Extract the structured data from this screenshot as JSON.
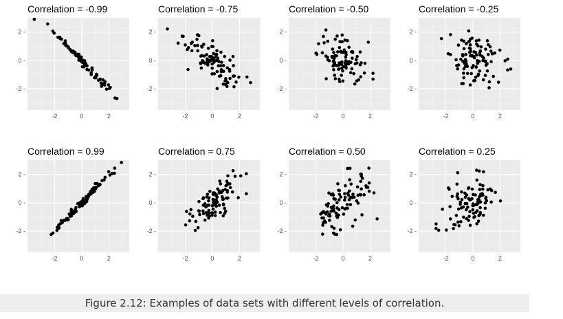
{
  "caption": "Figure 2.12: Examples of data sets with different levels of correlation.",
  "colors": {
    "panel_background": "#ebebeb",
    "grid_major": "#ffffff",
    "grid_minor": "#f4f4f4",
    "points": "#000000",
    "ticks": "#4d4d4d",
    "caption_background": "#eeeeee"
  },
  "chart_data": [
    {
      "type": "scatter",
      "title": "Correlation = -0.99",
      "correlation": -0.99,
      "xlim": [
        -4,
        3.5
      ],
      "ylim": [
        -3.5,
        3
      ],
      "x_ticks": [
        -2,
        0,
        2
      ],
      "y_ticks": [
        2,
        0,
        -2
      ],
      "x_tick_labels": [
        "-2",
        "0",
        "2"
      ],
      "y_tick_labels": [
        "2 -",
        "0 -",
        "-2 -"
      ],
      "grid": true,
      "points_approx_count": 100
    },
    {
      "type": "scatter",
      "title": "Correlation = -0.75",
      "correlation": -0.75,
      "xlim": [
        -4,
        3.5
      ],
      "ylim": [
        -3.5,
        3
      ],
      "x_ticks": [
        -2,
        0,
        2
      ],
      "y_ticks": [
        2,
        0,
        -2
      ],
      "x_tick_labels": [
        "-2",
        "0",
        "2"
      ],
      "y_tick_labels": [
        "2 -",
        "0 -",
        "-2 -"
      ],
      "grid": true,
      "points_approx_count": 100
    },
    {
      "type": "scatter",
      "title": "Correlation = -0.50",
      "correlation": -0.5,
      "xlim": [
        -4,
        3.5
      ],
      "ylim": [
        -3.5,
        3
      ],
      "x_ticks": [
        -2,
        0,
        2
      ],
      "y_ticks": [
        2,
        0,
        -2
      ],
      "x_tick_labels": [
        "-2",
        "0",
        "2"
      ],
      "y_tick_labels": [
        "2 -",
        "0 -",
        "-2 -"
      ],
      "grid": true,
      "points_approx_count": 100
    },
    {
      "type": "scatter",
      "title": "Correlation = -0.25",
      "correlation": -0.25,
      "xlim": [
        -4,
        3.5
      ],
      "ylim": [
        -3.5,
        3
      ],
      "x_ticks": [
        -2,
        0,
        2
      ],
      "y_ticks": [
        2,
        0,
        -2
      ],
      "x_tick_labels": [
        "-2",
        "0",
        "2"
      ],
      "y_tick_labels": [
        "2 -",
        "0 -",
        "-2 -"
      ],
      "grid": true,
      "points_approx_count": 100
    },
    {
      "type": "scatter",
      "title": "Correlation = 0.99",
      "correlation": 0.99,
      "xlim": [
        -4,
        3.5
      ],
      "ylim": [
        -3.5,
        3
      ],
      "x_ticks": [
        -2,
        0,
        2
      ],
      "y_ticks": [
        2,
        0,
        -2
      ],
      "x_tick_labels": [
        "-2",
        "0",
        "2"
      ],
      "y_tick_labels": [
        "2 -",
        "0 -",
        "-2 -"
      ],
      "grid": true,
      "points_approx_count": 100
    },
    {
      "type": "scatter",
      "title": "Correlation = 0.75",
      "correlation": 0.75,
      "xlim": [
        -4,
        3.5
      ],
      "ylim": [
        -3.5,
        3
      ],
      "x_ticks": [
        -2,
        0,
        2
      ],
      "y_ticks": [
        2,
        0,
        -2
      ],
      "x_tick_labels": [
        "-2",
        "0",
        "2"
      ],
      "y_tick_labels": [
        "2 -",
        "0 -",
        "-2 -"
      ],
      "grid": true,
      "points_approx_count": 100
    },
    {
      "type": "scatter",
      "title": "Correlation = 0.50",
      "correlation": 0.5,
      "xlim": [
        -4,
        3.5
      ],
      "ylim": [
        -3.5,
        3
      ],
      "x_ticks": [
        -2,
        0,
        2
      ],
      "y_ticks": [
        2,
        0,
        -2
      ],
      "x_tick_labels": [
        "-2",
        "0",
        "2"
      ],
      "y_tick_labels": [
        "2 -",
        "0 -",
        "-2 -"
      ],
      "grid": true,
      "points_approx_count": 100
    },
    {
      "type": "scatter",
      "title": "Correlation = 0.25",
      "correlation": 0.25,
      "xlim": [
        -4,
        3.5
      ],
      "ylim": [
        -3.5,
        3
      ],
      "x_ticks": [
        -2,
        0,
        2
      ],
      "y_ticks": [
        2,
        0,
        -2
      ],
      "x_tick_labels": [
        "-2",
        "0",
        "2"
      ],
      "y_tick_labels": [
        "2 -",
        "0 -",
        "-2 -"
      ],
      "grid": true,
      "points_approx_count": 100
    }
  ]
}
